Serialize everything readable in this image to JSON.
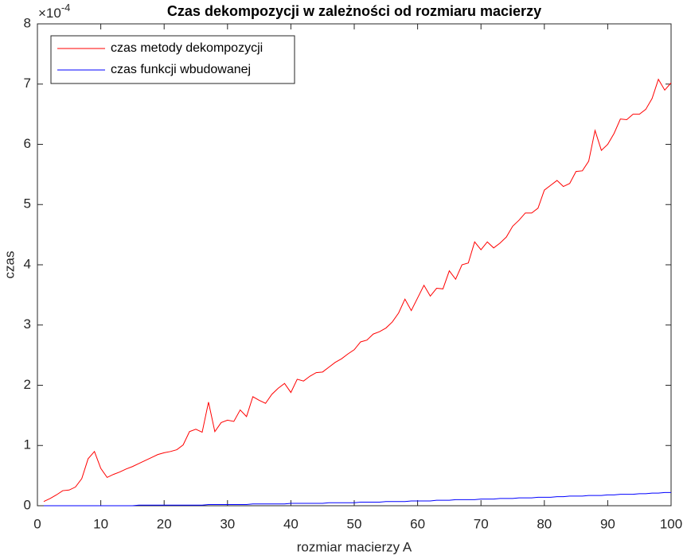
{
  "chart_data": {
    "type": "line",
    "title": "Czas dekompozycji w zależności od rozmiaru macierzy",
    "xlabel": "rozmiar macierzy A",
    "ylabel": "czas",
    "y_multiplier": {
      "base": "×10",
      "exponent": "-4"
    },
    "legend": "northwest",
    "grid": false,
    "xlim": [
      0,
      100
    ],
    "xticks": [
      0,
      10,
      20,
      30,
      40,
      50,
      60,
      70,
      80,
      90,
      100
    ],
    "ylim": [
      0,
      8
    ],
    "yticks": [
      0,
      1,
      2,
      3,
      4,
      5,
      6,
      7,
      8
    ],
    "x": [
      1,
      2,
      3,
      4,
      5,
      6,
      7,
      8,
      9,
      10,
      11,
      12,
      13,
      14,
      15,
      16,
      17,
      18,
      19,
      20,
      21,
      22,
      23,
      24,
      25,
      26,
      27,
      28,
      29,
      30,
      31,
      32,
      33,
      34,
      35,
      36,
      37,
      38,
      39,
      40,
      41,
      42,
      43,
      44,
      45,
      46,
      47,
      48,
      49,
      50,
      51,
      52,
      53,
      54,
      55,
      56,
      57,
      58,
      59,
      60,
      61,
      62,
      63,
      64,
      65,
      66,
      67,
      68,
      69,
      70,
      71,
      72,
      73,
      74,
      75,
      76,
      77,
      78,
      79,
      80,
      81,
      82,
      83,
      84,
      85,
      86,
      87,
      88,
      89,
      90,
      91,
      92,
      93,
      94,
      95,
      96,
      97,
      98,
      99,
      100
    ],
    "series": [
      {
        "name": "czas metody dekompozycji",
        "color": "#ff0000",
        "values": [
          0.07,
          0.12,
          0.18,
          0.25,
          0.26,
          0.31,
          0.45,
          0.78,
          0.9,
          0.62,
          0.47,
          0.52,
          0.56,
          0.61,
          0.65,
          0.7,
          0.75,
          0.8,
          0.85,
          0.88,
          0.9,
          0.93,
          1.01,
          1.23,
          1.27,
          1.22,
          1.72,
          1.23,
          1.38,
          1.42,
          1.4,
          1.59,
          1.48,
          1.81,
          1.75,
          1.7,
          1.85,
          1.95,
          2.03,
          1.88,
          2.1,
          2.07,
          2.15,
          2.21,
          2.22,
          2.3,
          2.38,
          2.44,
          2.52,
          2.59,
          2.72,
          2.75,
          2.85,
          2.89,
          2.95,
          3.05,
          3.2,
          3.43,
          3.24,
          3.45,
          3.66,
          3.48,
          3.61,
          3.6,
          3.9,
          3.76,
          4.0,
          4.03,
          4.38,
          4.25,
          4.38,
          4.28,
          4.36,
          4.46,
          4.64,
          4.74,
          4.86,
          4.86,
          4.94,
          5.24,
          5.32,
          5.4,
          5.3,
          5.35,
          5.55,
          5.56,
          5.72,
          6.23,
          5.9,
          6.0,
          6.18,
          6.42,
          6.41,
          6.5,
          6.5,
          6.58,
          6.76,
          7.08,
          6.9,
          7.02
        ]
      },
      {
        "name": "czas funkcji wbudowanej",
        "color": "#0000ff",
        "values": [
          0,
          0,
          0,
          0,
          0,
          0,
          0,
          0,
          0,
          0,
          0,
          0,
          0,
          0,
          0,
          0.01,
          0.01,
          0.01,
          0.01,
          0.01,
          0.01,
          0.01,
          0.01,
          0.01,
          0.01,
          0.01,
          0.02,
          0.02,
          0.02,
          0.02,
          0.02,
          0.02,
          0.02,
          0.03,
          0.03,
          0.03,
          0.03,
          0.03,
          0.03,
          0.04,
          0.04,
          0.04,
          0.04,
          0.04,
          0.04,
          0.05,
          0.05,
          0.05,
          0.05,
          0.05,
          0.06,
          0.06,
          0.06,
          0.06,
          0.07,
          0.07,
          0.07,
          0.07,
          0.08,
          0.08,
          0.08,
          0.08,
          0.09,
          0.09,
          0.09,
          0.1,
          0.1,
          0.1,
          0.1,
          0.11,
          0.11,
          0.11,
          0.12,
          0.12,
          0.12,
          0.13,
          0.13,
          0.13,
          0.14,
          0.14,
          0.14,
          0.15,
          0.15,
          0.16,
          0.16,
          0.16,
          0.17,
          0.17,
          0.17,
          0.18,
          0.18,
          0.19,
          0.19,
          0.19,
          0.2,
          0.2,
          0.21,
          0.21,
          0.22,
          0.22
        ]
      }
    ]
  }
}
